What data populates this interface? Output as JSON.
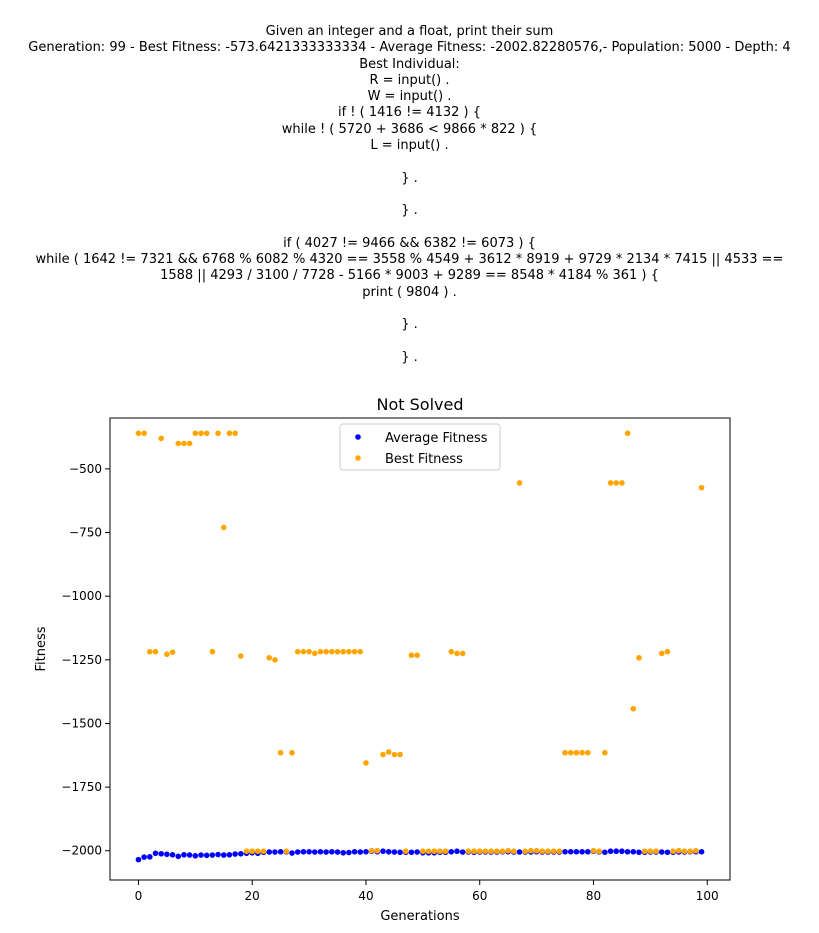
{
  "header_lines": [
    "Given an integer and a float, print their sum",
    "Generation: 99 - Best Fitness: -573.6421333333334 - Average Fitness: -2002.82280576,- Population: 5000 - Depth: 4",
    "Best Individual:",
    "R = input() .",
    "W = input() .",
    "if ! ( 1416 != 4132 ) {",
    "while ! ( 5720 + 3686 < 9866 * 822 ) {",
    "L = input() .",
    "",
    "} .",
    "",
    "} .",
    "",
    "if ( 4027 != 9466 && 6382 != 6073 ) {",
    "while ( 1642 != 7321 && 6768 % 6082 % 4320 == 3558 % 4549 + 3612 * 8919 + 9729 * 2134 * 7415 || 4533 ==",
    "1588 || 4293 / 3100 / 7728 - 5166 * 9003 + 9289 == 8548 * 4184 % 361 ) {",
    "print ( 9804 ) .",
    "",
    "} .",
    "",
    "} ."
  ],
  "chart_data": {
    "type": "scatter",
    "title": "Not Solved",
    "xlabel": "Generations",
    "ylabel": "Fitness",
    "xlim": [
      -5,
      104
    ],
    "ylim": [
      -2115,
      -300
    ],
    "xticks": [
      0,
      20,
      40,
      60,
      80,
      100
    ],
    "yticks": [
      -2000,
      -1750,
      -1500,
      -1250,
      -1000,
      -750,
      -500
    ],
    "ytick_labels": [
      "−2000",
      "−1750",
      "−1500",
      "−1250",
      "−1000",
      "−750",
      "−500"
    ],
    "legend_position": "upper-center",
    "grid": false,
    "series": [
      {
        "name": "Average Fitness",
        "color": "#0000ff",
        "x": [
          0,
          1,
          2,
          3,
          4,
          5,
          6,
          7,
          8,
          9,
          10,
          11,
          12,
          13,
          14,
          15,
          16,
          17,
          18,
          19,
          20,
          21,
          22,
          23,
          24,
          25,
          26,
          27,
          28,
          29,
          30,
          31,
          32,
          33,
          34,
          35,
          36,
          37,
          38,
          39,
          40,
          41,
          42,
          43,
          44,
          45,
          46,
          47,
          48,
          49,
          50,
          51,
          52,
          53,
          54,
          55,
          56,
          57,
          58,
          59,
          60,
          61,
          62,
          63,
          64,
          65,
          66,
          67,
          68,
          69,
          70,
          71,
          72,
          73,
          74,
          75,
          76,
          77,
          78,
          79,
          80,
          81,
          82,
          83,
          84,
          85,
          86,
          87,
          88,
          89,
          90,
          91,
          92,
          93,
          94,
          95,
          96,
          97,
          98,
          99
        ],
        "y": [
          -2035,
          -2025,
          -2024,
          -2010,
          -2012,
          -2014,
          -2016,
          -2022,
          -2016,
          -2017,
          -2020,
          -2017,
          -2018,
          -2017,
          -2015,
          -2017,
          -2016,
          -2013,
          -2012,
          -2010,
          -2008,
          -2010,
          -2006,
          -2005,
          -2005,
          -2004,
          -2004,
          -2009,
          -2005,
          -2004,
          -2004,
          -2005,
          -2004,
          -2005,
          -2004,
          -2005,
          -2008,
          -2007,
          -2004,
          -2005,
          -2004,
          -2002,
          -2004,
          -2002,
          -2004,
          -2005,
          -2006,
          -2006,
          -2006,
          -2005,
          -2008,
          -2008,
          -2008,
          -2006,
          -2006,
          -2004,
          -2002,
          -2005,
          -2005,
          -2006,
          -2005,
          -2005,
          -2005,
          -2005,
          -2004,
          -2004,
          -2005,
          -2005,
          -2005,
          -2005,
          -2004,
          -2005,
          -2005,
          -2005,
          -2005,
          -2004,
          -2004,
          -2004,
          -2004,
          -2004,
          -2002,
          -2004,
          -2006,
          -2002,
          -2002,
          -2002,
          -2004,
          -2004,
          -2006,
          -2006,
          -2005,
          -2005,
          -2005,
          -2006,
          -2006,
          -2005,
          -2005,
          -2004,
          -2004,
          -2004
        ]
      },
      {
        "name": "Best Fitness",
        "color": "#ffa500",
        "x": [
          0,
          1,
          2,
          3,
          4,
          5,
          6,
          7,
          8,
          9,
          10,
          11,
          12,
          13,
          14,
          15,
          16,
          17,
          18,
          19,
          20,
          21,
          22,
          23,
          24,
          25,
          26,
          27,
          28,
          29,
          30,
          31,
          32,
          33,
          34,
          35,
          36,
          37,
          38,
          39,
          40,
          41,
          42,
          43,
          44,
          45,
          46,
          47,
          48,
          49,
          50,
          51,
          52,
          53,
          54,
          55,
          56,
          57,
          58,
          59,
          60,
          61,
          62,
          63,
          64,
          65,
          66,
          67,
          68,
          69,
          70,
          71,
          72,
          73,
          74,
          75,
          76,
          77,
          78,
          79,
          80,
          81,
          82,
          83,
          84,
          85,
          86,
          87,
          88,
          89,
          90,
          91,
          92,
          93,
          94,
          95,
          96,
          97,
          98,
          99
        ],
        "y": [
          -360,
          -360,
          -1218,
          -1218,
          -380,
          -1228,
          -1220,
          -400,
          -400,
          -400,
          -360,
          -360,
          -360,
          -1218,
          -360,
          -730,
          -360,
          -360,
          -1235,
          -2002,
          -2002,
          -2002,
          -2002,
          -1242,
          -1250,
          -1615,
          -2002,
          -1615,
          -1218,
          -1218,
          -1218,
          -1225,
          -1218,
          -1218,
          -1218,
          -1218,
          -1218,
          -1218,
          -1218,
          -1218,
          -1655,
          -2000,
          -2000,
          -1622,
          -1612,
          -1622,
          -1622,
          -2002,
          -1232,
          -1232,
          -2002,
          -2002,
          -2002,
          -2002,
          -2002,
          -1218,
          -1225,
          -1225,
          -2002,
          -2002,
          -2002,
          -2002,
          -2002,
          -2002,
          -2002,
          -2000,
          -2002,
          -555,
          -2002,
          -2000,
          -2000,
          -2002,
          -2002,
          -2002,
          -2002,
          -1615,
          -1615,
          -1615,
          -1615,
          -1615,
          -2000,
          -2002,
          -1615,
          -555,
          -555,
          -555,
          -360,
          -1442,
          -1242,
          -2002,
          -2002,
          -2002,
          -1225,
          -1218,
          -2002,
          -2000,
          -2002,
          -2002,
          -2000,
          -573.64
        ]
      }
    ]
  }
}
